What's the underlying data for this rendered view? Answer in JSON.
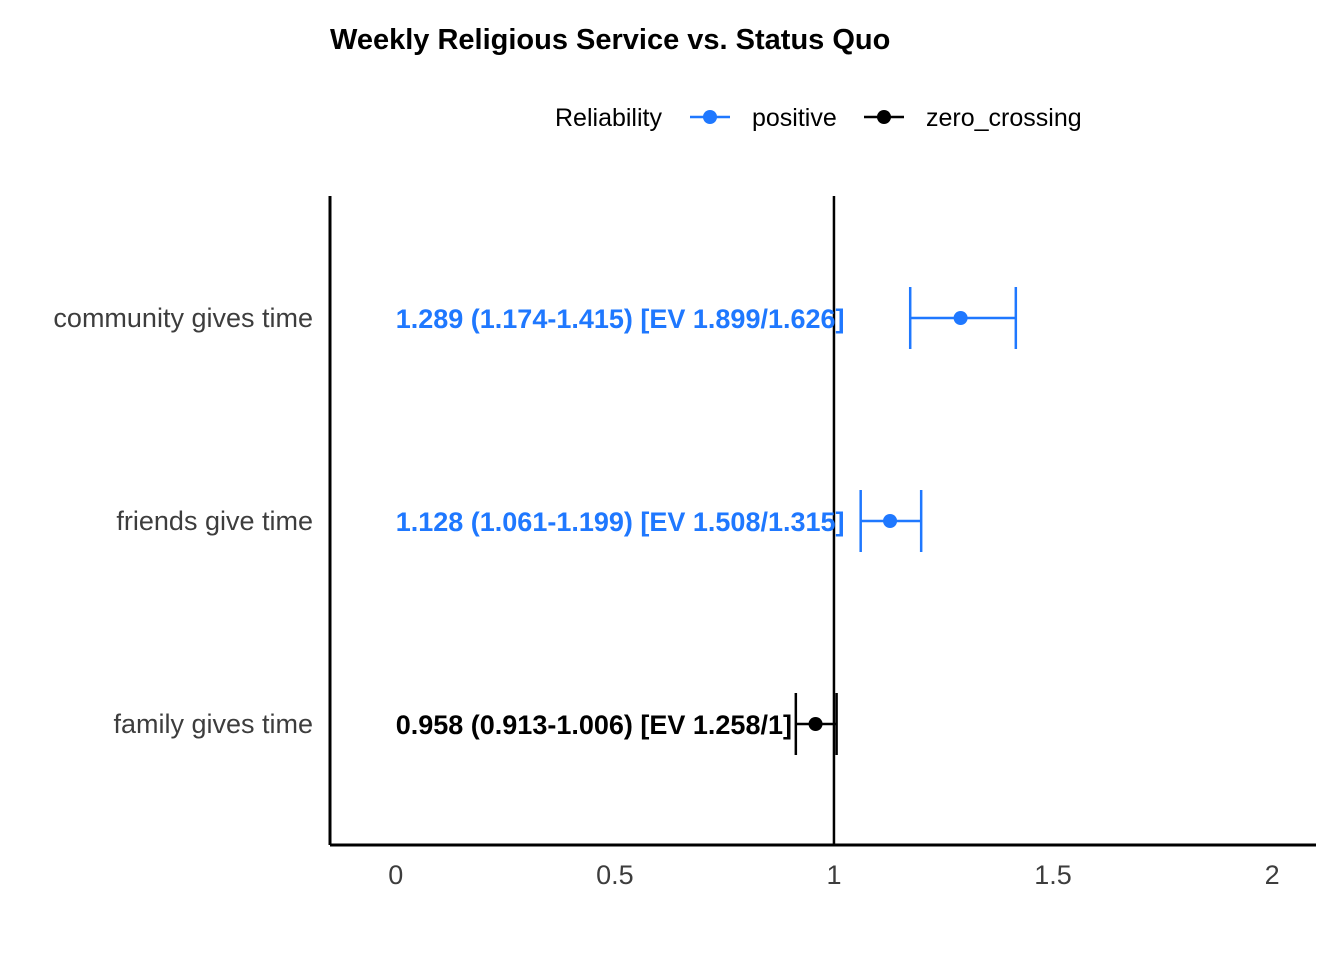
{
  "chart_data": {
    "type": "forest",
    "title": "Weekly Religious Service vs. Status Quo",
    "xlabel": "",
    "ylabel": "",
    "xlim": [
      -0.15,
      2.1
    ],
    "x_ticks": [
      0,
      0.5,
      1,
      1.5,
      2
    ],
    "x_tick_labels": [
      "0",
      "0.5",
      "1",
      "1.5",
      "2"
    ],
    "reference_line": 1,
    "label_x": 0,
    "legend": {
      "title": "Reliability",
      "placement": "top",
      "entries": [
        {
          "key": "positive",
          "label": "positive",
          "color": "#1f78ff"
        },
        {
          "key": "zero_crossing",
          "label": "zero_crossing",
          "color": "#000000"
        }
      ]
    },
    "categories": [
      "community gives time",
      "friends give time",
      "family gives time"
    ],
    "points": [
      {
        "category": "community gives time",
        "estimate": 1.289,
        "lower": 1.174,
        "upper": 1.415,
        "reliability": "positive",
        "label": "1.289 (1.174-1.415) [EV 1.899/1.626]"
      },
      {
        "category": "friends give time",
        "estimate": 1.128,
        "lower": 1.061,
        "upper": 1.199,
        "reliability": "positive",
        "label": "1.128 (1.061-1.199) [EV 1.508/1.315]"
      },
      {
        "category": "family gives time",
        "estimate": 0.958,
        "lower": 0.913,
        "upper": 1.006,
        "reliability": "zero_crossing",
        "label": "0.958 (0.913-1.006) [EV 1.258/1]"
      }
    ]
  }
}
